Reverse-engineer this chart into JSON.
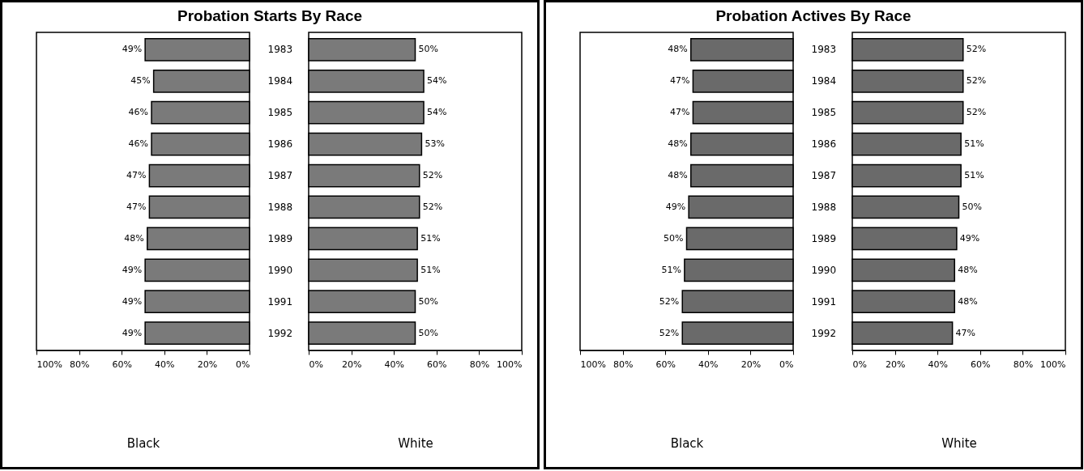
{
  "chart_data": [
    {
      "type": "bar",
      "orientation": "horizontal",
      "title": "Probation Starts By Race",
      "xlabel": "Black",
      "categories": [
        "1983",
        "1984",
        "1985",
        "1986",
        "1987",
        "1988",
        "1989",
        "1990",
        "1991",
        "1992"
      ],
      "values": [
        49,
        45,
        46,
        46,
        47,
        47,
        48,
        49,
        49,
        49
      ],
      "value_labels": [
        "49%",
        "45%",
        "46%",
        "46%",
        "47%",
        "47%",
        "48%",
        "49%",
        "49%",
        "49%"
      ],
      "color": "#7a7a7a",
      "xlim": [
        100,
        0
      ],
      "xticks": [
        {
          "value": 100,
          "label": "100%"
        },
        {
          "value": 80,
          "label": "80%"
        },
        {
          "value": 60,
          "label": "60%"
        },
        {
          "value": 40,
          "label": "40%"
        },
        {
          "value": 20,
          "label": "20%"
        },
        {
          "value": 0,
          "label": "0%"
        }
      ]
    },
    {
      "type": "bar",
      "orientation": "horizontal",
      "xlabel": "White",
      "categories": [
        null,
        null,
        null,
        null,
        null,
        null,
        null,
        null,
        null,
        null
      ],
      "values": [
        50,
        54,
        54,
        53,
        52,
        52,
        51,
        51,
        50,
        50
      ],
      "value_labels": [
        "50%",
        "54%",
        "54%",
        "53%",
        "52%",
        "52%",
        "51%",
        "51%",
        "50%",
        "50%"
      ],
      "color": "#7a7a7a",
      "xlim": [
        0,
        100
      ],
      "xticks": [
        {
          "value": 0,
          "label": "0%"
        },
        {
          "value": 20,
          "label": "20%"
        },
        {
          "value": 40,
          "label": "40%"
        },
        {
          "value": 60,
          "label": "60%"
        },
        {
          "value": 80,
          "label": "80%"
        },
        {
          "value": 100,
          "label": "100%"
        }
      ]
    },
    {
      "type": "bar",
      "orientation": "horizontal",
      "title": "Probation Actives By Race",
      "xlabel": "Black",
      "categories": [
        "1983",
        "1984",
        "1985",
        "1986",
        "1987",
        "1988",
        "1989",
        "1990",
        "1991",
        "1992"
      ],
      "values": [
        48,
        47,
        47,
        48,
        48,
        49,
        50,
        51,
        52,
        52
      ],
      "value_labels": [
        "48%",
        "47%",
        "47%",
        "48%",
        "48%",
        "49%",
        "50%",
        "51%",
        "52%",
        "52%"
      ],
      "color": "#6a6a6a",
      "xlim": [
        100,
        0
      ],
      "xticks": [
        {
          "value": 100,
          "label": "100%"
        },
        {
          "value": 80,
          "label": "80%"
        },
        {
          "value": 60,
          "label": "60%"
        },
        {
          "value": 40,
          "label": "40%"
        },
        {
          "value": 20,
          "label": "20%"
        },
        {
          "value": 0,
          "label": "0%"
        }
      ]
    },
    {
      "type": "bar",
      "orientation": "horizontal",
      "xlabel": "White",
      "categories": [
        null,
        null,
        null,
        null,
        null,
        null,
        null,
        null,
        null,
        null
      ],
      "values": [
        52,
        52,
        52,
        51,
        51,
        50,
        49,
        48,
        48,
        47
      ],
      "value_labels": [
        "52%",
        "52%",
        "52%",
        "51%",
        "51%",
        "50%",
        "49%",
        "48%",
        "48%",
        "47%"
      ],
      "color": "#6a6a6a",
      "xlim": [
        0,
        100
      ],
      "xticks": [
        {
          "value": 0,
          "label": "0%"
        },
        {
          "value": 20,
          "label": "20%"
        },
        {
          "value": 40,
          "label": "40%"
        },
        {
          "value": 60,
          "label": "60%"
        },
        {
          "value": 80,
          "label": "80%"
        },
        {
          "value": 100,
          "label": "100%"
        }
      ]
    }
  ]
}
